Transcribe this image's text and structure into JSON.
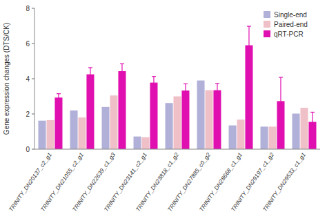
{
  "chart_data": {
    "type": "bar",
    "categories": [
      "TRINITY_DN20137_c2_g1",
      "TRINITY_DN21055_c2_g1",
      "TRINITY_DN22639_c1_g3",
      "TRINITY_DN23141_c2_g1",
      "TRINITY_DN23818_c1_g2",
      "TRINITY_DN27885_c0_g2",
      "TRINITY_DN28668_c1_g1",
      "TRINITY_DN29197_c1_g2",
      "TRINITY_DN29533_c1_g1"
    ],
    "series": [
      {
        "name": "Single-end",
        "color": "#b0b0d8",
        "values": [
          1.62,
          2.2,
          2.4,
          0.72,
          2.62,
          3.9,
          1.35,
          1.28,
          2.02
        ]
      },
      {
        "name": "Paired-end",
        "color": "#f0c0c8",
        "values": [
          1.65,
          1.8,
          3.05,
          0.68,
          3.0,
          3.35,
          1.68,
          1.28,
          2.35
        ]
      },
      {
        "name": "qRT-PCR",
        "color": "#e010b0",
        "values": [
          2.93,
          4.25,
          4.43,
          3.78,
          3.33,
          3.35,
          5.9,
          2.73,
          1.55
        ],
        "errors": [
          0.22,
          0.38,
          0.42,
          0.35,
          0.38,
          0.38,
          1.08,
          1.35,
          0.55
        ]
      }
    ],
    "ylabel": "Gene expression changes (DTS/CK)",
    "ylim": [
      0,
      8
    ],
    "yticks": [
      0,
      2,
      4,
      6,
      8
    ],
    "grid": false,
    "legend": "upper right"
  }
}
